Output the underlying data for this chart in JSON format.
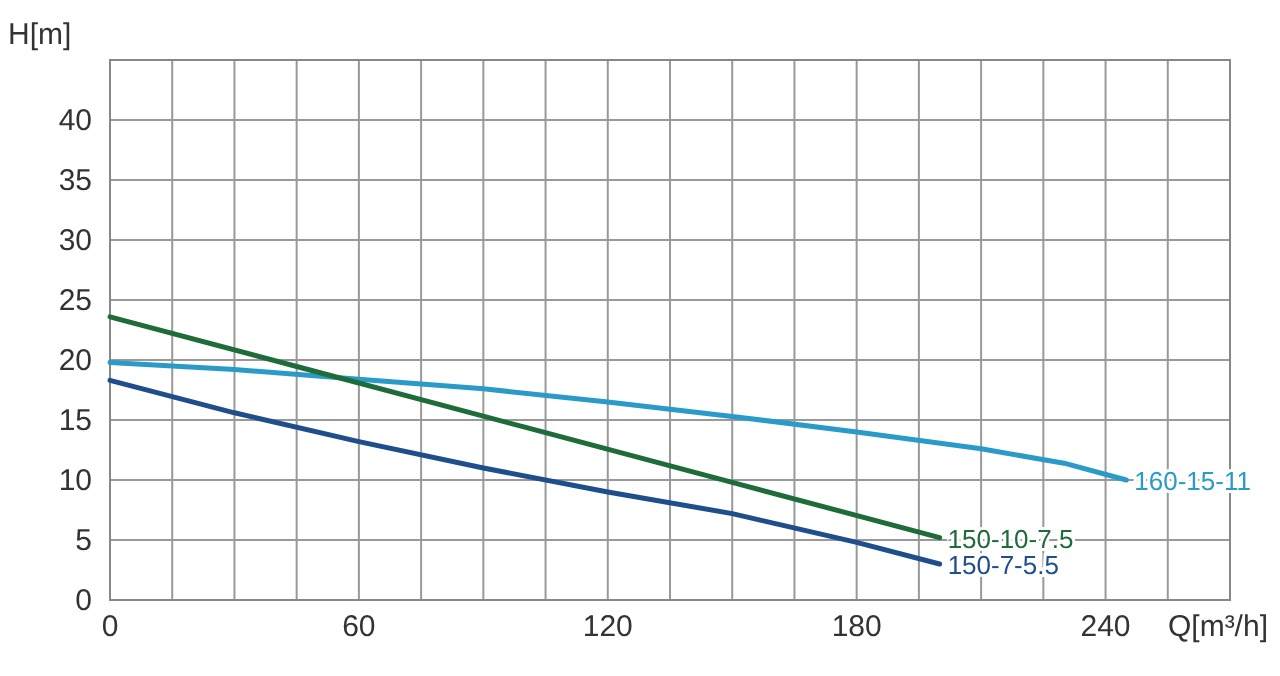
{
  "chart_data": {
    "type": "line",
    "xlabel": "Q[m³/h]",
    "ylabel": "H[m]",
    "xlim": [
      0,
      270
    ],
    "ylim": [
      0,
      45
    ],
    "xticks": [
      0,
      {
        "value": 15,
        "label": null
      },
      {
        "value": 30,
        "label": null
      },
      {
        "value": 45,
        "label": null
      },
      60,
      {
        "value": 75,
        "label": null
      },
      {
        "value": 90,
        "label": null
      },
      {
        "value": 105,
        "label": null
      },
      120,
      {
        "value": 135,
        "label": null
      },
      {
        "value": 150,
        "label": null
      },
      {
        "value": 165,
        "label": null
      },
      180,
      {
        "value": 195,
        "label": null
      },
      {
        "value": 210,
        "label": null
      },
      {
        "value": 225,
        "label": null
      },
      240,
      {
        "value": 255,
        "label": null
      },
      {
        "value": 270,
        "label": null
      }
    ],
    "yticks": [
      0,
      5,
      10,
      15,
      20,
      25,
      30,
      35,
      40,
      {
        "value": 45,
        "label": null
      }
    ],
    "grid": true,
    "marker": "none",
    "line_style": "solid",
    "series": [
      {
        "name": "160-15-11",
        "color": "#2a9bc8",
        "x": [
          0,
          30,
          60,
          90,
          120,
          150,
          180,
          210,
          230,
          245
        ],
        "values": [
          19.8,
          19.2,
          18.4,
          17.6,
          16.5,
          15.3,
          14,
          12.6,
          11.4,
          10
        ]
      },
      {
        "name": "150-10-7.5",
        "color": "#1f6b3a",
        "x": [
          0,
          50,
          100,
          150,
          200
        ],
        "values": [
          23.6,
          19,
          14.4,
          9.8,
          5.2
        ]
      },
      {
        "name": "150-7-5.5",
        "color": "#1f4e8c",
        "x": [
          0,
          30,
          60,
          90,
          120,
          150,
          180,
          200
        ],
        "values": [
          18.3,
          15.6,
          13.2,
          11,
          9,
          7.2,
          4.8,
          3
        ]
      }
    ]
  }
}
